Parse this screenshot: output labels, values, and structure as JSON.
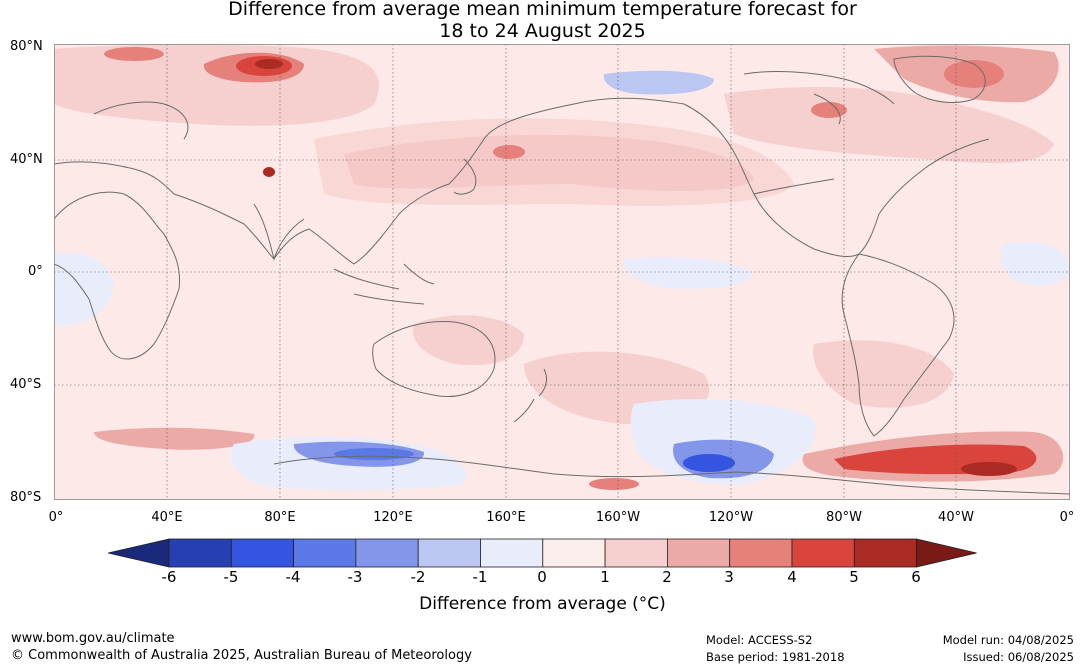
{
  "title": {
    "line1": "Difference from average mean minimum temperature forecast for",
    "line2": "18 to 24 August 2025"
  },
  "map": {
    "lat_labels": [
      "80°N",
      "40°N",
      "0°",
      "40°S",
      "80°S"
    ],
    "lon_labels": [
      "0°",
      "40°E",
      "80°E",
      "120°E",
      "160°E",
      "160°W",
      "120°W",
      "80°W",
      "40°W",
      "0°"
    ],
    "land_color": "#fde9e8",
    "coast_color": "#6b6b6b"
  },
  "colorbar": {
    "title": "Difference from average (°C)",
    "ticks": [
      "-6",
      "-5",
      "-4",
      "-3",
      "-2",
      "-1",
      "0",
      "1",
      "2",
      "3",
      "4",
      "5",
      "6"
    ],
    "colors": [
      "#1a2a7a",
      "#2640b3",
      "#3355e0",
      "#5a78e6",
      "#8496ea",
      "#bcc6f2",
      "#e9ecfa",
      "#fdeeee",
      "#f5d0cf",
      "#ecaaa7",
      "#e5807b",
      "#d9453d",
      "#aa2a24",
      "#7a1a16"
    ]
  },
  "footer": {
    "website": "www.bom.gov.au/climate",
    "copyright": "© Commonwealth of Australia 2025, Australian Bureau of Meteorology",
    "model": "Model: ACCESS-S2",
    "base_period": "Base period: 1981-2018",
    "model_run": "Model run: 04/08/2025",
    "issued": "Issued: 06/08/2025"
  }
}
